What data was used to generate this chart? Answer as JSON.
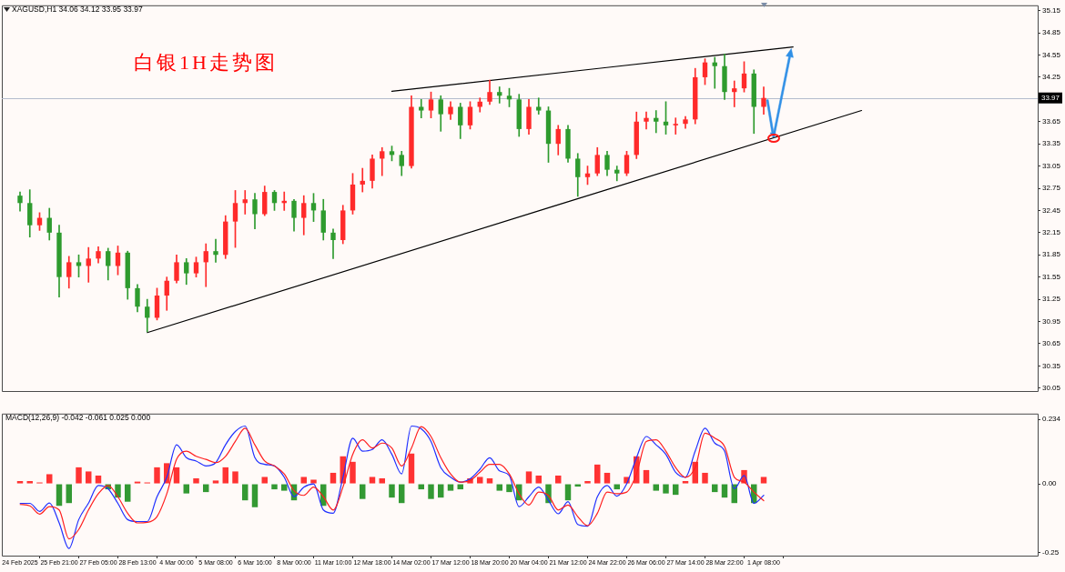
{
  "chart_data": [
    {
      "type": "candlestick",
      "title": "白银1H走势图",
      "subtitle": "XAGUSD,H1 34.06 34.12 33.95 33.97",
      "categories": [
        null,
        null,
        null,
        null,
        null,
        null,
        null,
        null,
        null,
        null,
        null,
        null,
        null,
        null,
        null,
        null,
        null,
        null,
        null,
        null,
        null,
        null,
        null,
        null,
        null,
        null,
        null,
        null,
        null,
        null,
        null,
        null,
        null,
        null,
        null,
        null,
        null,
        null,
        null,
        null,
        null,
        null,
        null,
        null,
        null,
        null,
        null,
        null,
        null,
        null,
        null,
        null,
        null,
        null,
        null,
        null,
        null,
        null,
        null,
        null,
        null,
        null,
        null,
        null,
        null,
        null,
        null,
        null,
        null,
        null,
        null,
        null,
        null,
        null,
        null,
        null,
        null,
        null,
        null,
        null,
        null,
        null,
        null,
        null,
        null,
        null,
        null,
        null,
        null,
        null,
        null,
        null,
        null,
        null,
        null,
        null,
        null,
        null,
        null,
        null,
        null,
        null,
        null,
        null,
        null
      ],
      "ohlc": [
        [
          32.65,
          32.7,
          32.44,
          32.55
        ],
        [
          32.55,
          32.73,
          32.09,
          32.25
        ],
        [
          32.25,
          32.42,
          32.18,
          32.35
        ],
        [
          32.35,
          32.48,
          32.05,
          32.15
        ],
        [
          32.15,
          32.25,
          31.28,
          31.55
        ],
        [
          31.55,
          31.83,
          31.4,
          31.75
        ],
        [
          31.75,
          31.85,
          31.55,
          31.7
        ],
        [
          31.7,
          31.95,
          31.48,
          31.8
        ],
        [
          31.8,
          31.96,
          31.74,
          31.9
        ],
        [
          31.9,
          31.94,
          31.51,
          31.7
        ],
        [
          31.7,
          31.97,
          31.58,
          31.88
        ],
        [
          31.88,
          31.9,
          31.25,
          31.4
        ],
        [
          31.4,
          31.45,
          31.08,
          31.15
        ],
        [
          31.15,
          31.25,
          30.81,
          31.0
        ],
        [
          31.0,
          31.4,
          30.97,
          31.3
        ],
        [
          31.3,
          31.55,
          31.1,
          31.5
        ],
        [
          31.5,
          31.85,
          31.47,
          31.75
        ],
        [
          31.75,
          31.8,
          31.45,
          31.6
        ],
        [
          31.6,
          31.82,
          31.55,
          31.75
        ],
        [
          31.75,
          32.0,
          31.42,
          31.9
        ],
        [
          31.9,
          32.06,
          31.75,
          31.85
        ],
        [
          31.85,
          32.38,
          31.8,
          32.3
        ],
        [
          32.3,
          32.72,
          31.95,
          32.55
        ],
        [
          32.55,
          32.72,
          32.4,
          32.6
        ],
        [
          32.6,
          32.68,
          32.2,
          32.4
        ],
        [
          32.4,
          32.78,
          32.38,
          32.7
        ],
        [
          32.7,
          32.72,
          32.45,
          32.55
        ],
        [
          32.55,
          32.7,
          32.45,
          32.58
        ],
        [
          32.58,
          32.6,
          32.17,
          32.35
        ],
        [
          32.35,
          32.65,
          32.12,
          32.55
        ],
        [
          32.55,
          32.68,
          32.3,
          32.45
        ],
        [
          32.45,
          32.6,
          32.05,
          32.15
        ],
        [
          32.15,
          32.2,
          31.8,
          32.05
        ],
        [
          32.05,
          32.52,
          32.0,
          32.45
        ],
        [
          32.45,
          32.95,
          32.4,
          32.8
        ],
        [
          32.8,
          33.02,
          32.7,
          32.85
        ],
        [
          32.85,
          33.2,
          32.75,
          33.15
        ],
        [
          33.15,
          33.3,
          32.92,
          33.25
        ],
        [
          33.25,
          33.32,
          33.12,
          33.2
        ],
        [
          33.2,
          33.25,
          32.92,
          33.05
        ],
        [
          33.05,
          34.0,
          33.02,
          33.85
        ],
        [
          33.85,
          33.95,
          33.7,
          33.8
        ],
        [
          33.8,
          34.05,
          33.7,
          33.95
        ],
        [
          33.95,
          34.0,
          33.52,
          33.75
        ],
        [
          33.75,
          33.92,
          33.68,
          33.85
        ],
        [
          33.85,
          33.9,
          33.42,
          33.6
        ],
        [
          33.6,
          33.92,
          33.55,
          33.85
        ],
        [
          33.85,
          33.97,
          33.78,
          33.92
        ],
        [
          33.92,
          34.21,
          33.88,
          34.05
        ],
        [
          34.05,
          34.12,
          33.9,
          34.0
        ],
        [
          34.0,
          34.1,
          33.85,
          33.95
        ],
        [
          33.95,
          34.02,
          33.45,
          33.55
        ],
        [
          33.55,
          33.95,
          33.48,
          33.85
        ],
        [
          33.85,
          33.97,
          33.75,
          33.8
        ],
        [
          33.8,
          33.85,
          33.1,
          33.35
        ],
        [
          33.35,
          33.6,
          33.2,
          33.55
        ],
        [
          33.55,
          33.6,
          33.1,
          33.15
        ],
        [
          33.15,
          33.22,
          32.64,
          32.9
        ],
        [
          32.9,
          33.05,
          32.8,
          32.95
        ],
        [
          32.95,
          33.3,
          32.92,
          33.2
        ],
        [
          33.2,
          33.25,
          32.92,
          33.0
        ],
        [
          33.0,
          33.05,
          32.85,
          32.95
        ],
        [
          32.95,
          33.25,
          32.92,
          33.2
        ],
        [
          33.2,
          33.78,
          33.15,
          33.65
        ],
        [
          33.65,
          33.78,
          33.55,
          33.7
        ],
        [
          33.7,
          33.8,
          33.5,
          33.65
        ],
        [
          33.65,
          33.92,
          33.48,
          33.6
        ],
        [
          33.6,
          33.7,
          33.48,
          33.62
        ],
        [
          33.62,
          33.72,
          33.56,
          33.68
        ],
        [
          33.68,
          34.37,
          33.62,
          34.25
        ],
        [
          34.25,
          34.5,
          34.15,
          34.45
        ],
        [
          34.45,
          34.52,
          34.1,
          34.4
        ],
        [
          34.4,
          34.56,
          33.95,
          34.05
        ],
        [
          34.05,
          34.2,
          33.85,
          34.1
        ],
        [
          34.1,
          34.46,
          34.05,
          34.3
        ],
        [
          34.3,
          34.35,
          33.49,
          33.85
        ],
        [
          33.85,
          34.12,
          33.75,
          33.97
        ],
        null,
        null,
        null,
        null,
        null,
        null,
        null,
        null,
        null,
        null,
        null,
        null,
        null,
        null,
        null,
        null,
        null,
        null,
        null,
        null,
        null,
        null,
        null,
        null,
        null,
        null,
        null,
        null
      ],
      "colors": [
        "#2e9b2e",
        "#2e9b2e",
        "#ff2a2a",
        "#2e9b2e",
        "#2e9b2e",
        "#ff2a2a",
        "#2e9b2e",
        "#ff2a2a",
        "#ff2a2a",
        "#2e9b2e",
        "#ff2a2a",
        "#2e9b2e",
        "#2e9b2e",
        "#2e9b2e",
        "#ff2a2a",
        "#ff2a2a",
        "#ff2a2a",
        "#2e9b2e",
        "#ff2a2a",
        "#ff2a2a",
        "#2e9b2e",
        "#ff2a2a",
        "#ff2a2a",
        "#ff2a2a",
        "#2e9b2e",
        "#ff2a2a",
        "#2e9b2e",
        "#ff2a2a",
        "#2e9b2e",
        "#ff2a2a",
        "#2e9b2e",
        "#2e9b2e",
        "#2e9b2e",
        "#ff2a2a",
        "#ff2a2a",
        "#ff2a2a",
        "#ff2a2a",
        "#ff2a2a",
        "#2e9b2e",
        "#2e9b2e",
        "#ff2a2a",
        "#2e9b2e",
        "#ff2a2a",
        "#2e9b2e",
        "#ff2a2a",
        "#2e9b2e",
        "#ff2a2a",
        "#ff2a2a",
        "#ff2a2a",
        "#2e9b2e",
        "#2e9b2e",
        "#2e9b2e",
        "#ff2a2a",
        "#2e9b2e",
        "#2e9b2e",
        "#ff2a2a",
        "#2e9b2e",
        "#2e9b2e",
        "#ff2a2a",
        "#ff2a2a",
        "#2e9b2e",
        "#2e9b2e",
        "#ff2a2a",
        "#ff2a2a",
        "#ff2a2a",
        "#2e9b2e",
        "#2e9b2e",
        "#ff2a2a",
        "#ff2a2a",
        "#ff2a2a",
        "#ff2a2a",
        "#2e9b2e",
        "#2e9b2e",
        "#ff2a2a",
        "#ff2a2a",
        "#2e9b2e",
        "#ff2a2a",
        null,
        null,
        null,
        null,
        null,
        null,
        null,
        null,
        null,
        null,
        null,
        null,
        null,
        null,
        null,
        null,
        null,
        null,
        null,
        null,
        null,
        null,
        null,
        null,
        null,
        null,
        null,
        null
      ],
      "series": [
        {
          "type": "line",
          "color": "#000000",
          "values": [
            null,
            null,
            null,
            null,
            null,
            null,
            null,
            null,
            null,
            null,
            null,
            null,
            null,
            null,
            null,
            null,
            null,
            null,
            null,
            null,
            null,
            null,
            null,
            null,
            null,
            null,
            null,
            null,
            null,
            null,
            null,
            null,
            null,
            null,
            null,
            null,
            null,
            null,
            34.06,
            null,
            null,
            null,
            null,
            null,
            null,
            null,
            null,
            null,
            null,
            null,
            null,
            null,
            null,
            null,
            null,
            null,
            null,
            null,
            null,
            null,
            null,
            null,
            null,
            null,
            null,
            null,
            null,
            null,
            null,
            null,
            null,
            null,
            null,
            null,
            null,
            null,
            null,
            null,
            null,
            34.66,
            null,
            null,
            null,
            null,
            null,
            null,
            null,
            null,
            null,
            null,
            null,
            null,
            null,
            null,
            null,
            null,
            null,
            null,
            null,
            null,
            null,
            null,
            null,
            null,
            null
          ]
        },
        {
          "type": "line",
          "color": "#000000",
          "values": [
            null,
            null,
            null,
            null,
            null,
            null,
            null,
            null,
            null,
            null,
            null,
            null,
            null,
            30.8,
            null,
            null,
            null,
            null,
            null,
            null,
            null,
            null,
            null,
            null,
            null,
            null,
            null,
            null,
            null,
            null,
            null,
            null,
            null,
            null,
            null,
            null,
            null,
            null,
            null,
            null,
            null,
            null,
            null,
            null,
            null,
            null,
            null,
            null,
            null,
            null,
            null,
            null,
            null,
            null,
            null,
            null,
            null,
            null,
            null,
            null,
            null,
            null,
            null,
            null,
            null,
            null,
            null,
            null,
            null,
            null,
            null,
            null,
            null,
            null,
            null,
            null,
            null,
            null,
            null,
            null,
            null,
            null,
            null,
            null,
            null,
            null,
            33.8,
            null,
            null,
            null,
            null,
            null,
            null,
            null,
            null,
            null,
            null,
            null,
            null,
            null,
            null,
            null,
            null,
            null,
            null
          ]
        }
      ],
      "ylim": [
        30.01,
        35.21
      ],
      "yticks": [
        35.15,
        34.85,
        34.55,
        34.25,
        33.65,
        33.35,
        33.05,
        32.75,
        32.45,
        32.15,
        31.85,
        31.55,
        31.25,
        30.95,
        30.65,
        30.35,
        30.05
      ],
      "ref_lines": [
        {
          "axis": "y",
          "value": 33.97,
          "label": "33.97",
          "color": "#b4bccc"
        }
      ],
      "tick_labels": "y"
    },
    {
      "type": "bar",
      "title": "MACD(12,26,9) -0.042 -0.061 0.025 0.000",
      "categories": [
        "24 Feb 2025",
        null,
        null,
        null,
        "25 Feb 21:00",
        null,
        null,
        null,
        "27 Feb 05:00",
        null,
        null,
        null,
        "28 Feb 13:00",
        null,
        null,
        null,
        "4 Mar 00:00",
        null,
        null,
        null,
        "5 Mar 08:00",
        null,
        null,
        null,
        "6 Mar 16:00",
        null,
        null,
        null,
        "8 Mar 00:00",
        null,
        null,
        null,
        "11 Mar 10:00",
        null,
        null,
        null,
        "12 Mar 18:00",
        null,
        null,
        null,
        "14 Mar 02:00",
        null,
        null,
        null,
        "17 Mar 12:00",
        null,
        null,
        null,
        "18 Mar 20:00",
        null,
        null,
        null,
        "20 Mar 04:00",
        null,
        null,
        null,
        "21 Mar 12:00",
        null,
        null,
        null,
        "24 Mar 22:00",
        null,
        null,
        null,
        "26 Mar 06:00",
        null,
        null,
        null,
        "27 Mar 14:00",
        null,
        null,
        null,
        "28 Mar 22:00",
        null,
        null,
        null,
        "1 Apr 08:00",
        null,
        null,
        null,
        null,
        null,
        null,
        null,
        null,
        null,
        null,
        null,
        null,
        null,
        null,
        null,
        null,
        null,
        null,
        null,
        null,
        null,
        null,
        null,
        null,
        null,
        null,
        null,
        null
      ],
      "series": [
        {
          "colors": [
            "#ff3333",
            "#ff3333",
            "#ff3333",
            "#ff3333",
            "#339933",
            "#339933",
            "#ff3333",
            "#ff3333",
            "#ff3333",
            "#339933",
            "#339933",
            "#339933",
            "#ff3333",
            "#ff3333",
            "#ff3333",
            "#ff3333",
            "#ff3333",
            "#339933",
            "#ff3333",
            "#339933",
            "#ff3333",
            "#ff3333",
            "#ff3333",
            "#339933",
            "#339933",
            "#ff3333",
            "#339933",
            "#339933",
            "#339933",
            "#ff3333",
            "#ff3333",
            "#339933",
            "#ff3333",
            "#ff3333",
            "#ff3333",
            "#339933",
            "#ff3333",
            "#ff3333",
            "#339933",
            "#339933",
            "#ff3333",
            "#339933",
            "#339933",
            "#339933",
            "#339933",
            "#339933",
            "#ff3333",
            "#ff3333",
            "#ff3333",
            "#339933",
            "#339933",
            "#339933",
            "#ff3333",
            "#ff3333",
            "#339933",
            "#ff3333",
            "#339933",
            "#339933",
            "#ff3333",
            "#ff3333",
            "#ff3333",
            "#339933",
            "#ff3333",
            "#ff3333",
            "#ff3333",
            "#339933",
            "#339933",
            "#339933",
            "#ff3333",
            "#ff3333",
            "#ff3333",
            "#339933",
            "#339933",
            "#339933",
            "#ff3333",
            "#339933",
            "#ff3333",
            null,
            null,
            null,
            null,
            null,
            null,
            null,
            null,
            null,
            null,
            null,
            null,
            null,
            null,
            null,
            null,
            null,
            null,
            null,
            null,
            null,
            null,
            null,
            null,
            null,
            null,
            null,
            null
          ],
          "values": [
            0.01,
            0.01,
            0.005,
            0.035,
            -0.08,
            -0.07,
            0.06,
            0.045,
            0.03,
            -0.02,
            -0.05,
            -0.065,
            0.008,
            0.005,
            0.06,
            0.075,
            0.06,
            -0.035,
            0.02,
            -0.03,
            0.012,
            0.06,
            0.045,
            -0.06,
            -0.085,
            0.025,
            -0.02,
            -0.025,
            -0.06,
            0.025,
            0.015,
            -0.08,
            0.04,
            0.1,
            0.08,
            -0.055,
            0.025,
            0.02,
            -0.05,
            -0.07,
            0.11,
            -0.02,
            -0.055,
            -0.05,
            -0.025,
            -0.02,
            0.02,
            0.025,
            0.02,
            -0.025,
            -0.03,
            -0.06,
            0.045,
            0.03,
            -0.07,
            0.03,
            -0.06,
            -0.01,
            0.01,
            0.07,
            0.04,
            -0.02,
            0.025,
            0.1,
            0.05,
            -0.025,
            -0.035,
            -0.04,
            0.01,
            0.08,
            0.04,
            -0.03,
            -0.05,
            -0.07,
            0.05,
            -0.07,
            0.025,
            null,
            null,
            null,
            null,
            null,
            null,
            null,
            null,
            null,
            null,
            null,
            null,
            null,
            null,
            null,
            null,
            null,
            null,
            null,
            null,
            null,
            null,
            null,
            null,
            null,
            null,
            null,
            null
          ]
        },
        {
          "type": "line",
          "color": "#2030ff",
          "values": [
            -0.071,
            -0.071,
            -0.1,
            -0.07,
            -0.142,
            -0.235,
            -0.13,
            -0.07,
            -0.006,
            -0.018,
            -0.071,
            -0.13,
            -0.137,
            -0.137,
            -0.047,
            0.024,
            0.142,
            0.095,
            0.083,
            0.065,
            0.077,
            0.142,
            0.19,
            0.21,
            0.095,
            0.071,
            0.065,
            0.024,
            -0.047,
            -0.012,
            0,
            -0.095,
            -0.107,
            0.024,
            0.166,
            0.119,
            0.125,
            0.16,
            0.107,
            0.036,
            0.21,
            0.2,
            0.154,
            0.059,
            0.024,
            0.006,
            0.018,
            0.053,
            0.095,
            0.047,
            0.03,
            -0.083,
            -0.047,
            -0.012,
            -0.06,
            -0.109,
            -0.065,
            -0.148,
            -0.154,
            -0.047,
            -0.006,
            -0.045,
            0,
            0.095,
            0.172,
            0.142,
            0.107,
            0.042,
            0.024,
            0.119,
            0.202,
            0.148,
            0.119,
            -0.018,
            0.03,
            -0.071,
            -0.042,
            null,
            null,
            null,
            null,
            null,
            null,
            null,
            null,
            null,
            null,
            null,
            null,
            null,
            null,
            null,
            null,
            null,
            null,
            null,
            null,
            null,
            null,
            null,
            null,
            null,
            null,
            null,
            null
          ]
        },
        {
          "type": "line",
          "color": "#ff2020",
          "values": [
            -0.075,
            -0.08,
            -0.11,
            -0.083,
            -0.095,
            -0.2,
            -0.166,
            -0.095,
            -0.036,
            -0.006,
            -0.047,
            -0.107,
            -0.142,
            -0.14,
            -0.119,
            -0.036,
            0.089,
            0.119,
            0.1,
            0.089,
            0.077,
            0.1,
            0.154,
            0.202,
            0.142,
            0.083,
            0.065,
            0.036,
            -0.024,
            -0.042,
            -0.012,
            -0.047,
            -0.095,
            -0.012,
            0.107,
            0.16,
            0.13,
            0.148,
            0.13,
            0.065,
            0.13,
            0.208,
            0.172,
            0.095,
            0.036,
            0.006,
            0.012,
            0.042,
            0.071,
            0.071,
            0.036,
            -0.036,
            -0.077,
            -0.03,
            -0.042,
            -0.095,
            -0.077,
            -0.119,
            -0.152,
            -0.107,
            -0.03,
            -0.036,
            -0.03,
            0.036,
            0.154,
            0.16,
            0.119,
            0.059,
            0.024,
            0.059,
            0.184,
            0.166,
            0.136,
            0.024,
            0.006,
            -0.03,
            -0.061,
            null,
            null,
            null,
            null,
            null,
            null,
            null,
            null,
            null,
            null,
            null,
            null,
            null,
            null,
            null,
            null,
            null,
            null,
            null,
            null,
            null,
            null,
            null,
            null,
            null,
            null,
            null,
            null
          ]
        }
      ],
      "ylim": [
        -0.261,
        0.252
      ],
      "yticks": [
        0.234,
        {
          "value": 0,
          "label": "0.00"
        },
        -0.25
      ]
    }
  ]
}
